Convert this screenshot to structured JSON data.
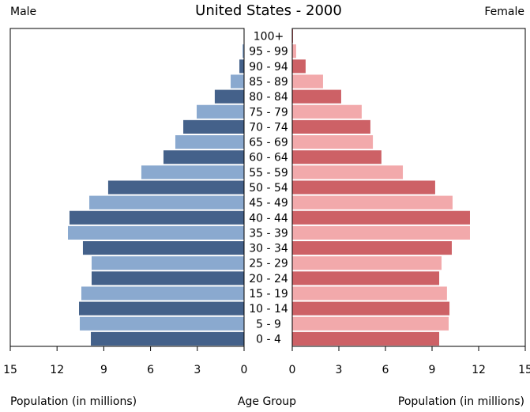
{
  "chart_data": {
    "type": "population-pyramid",
    "title": "United States - 2000",
    "y_label": "Age Group",
    "categories": [
      "100+",
      "95 - 99",
      "90 - 94",
      "85 - 89",
      "80 - 84",
      "75 - 79",
      "70 - 74",
      "65 - 69",
      "60 - 64",
      "55 - 59",
      "50 - 54",
      "45 - 49",
      "40 - 44",
      "35 - 39",
      "30 - 34",
      "25 - 29",
      "20 - 24",
      "15 - 19",
      "10 - 14",
      "5 - 9",
      "0 - 4"
    ],
    "xlim": [
      0,
      15
    ],
    "xticks": [
      0,
      3,
      6,
      9,
      12,
      15
    ],
    "series": [
      {
        "name": "Male",
        "x_label": "Population (in millions)",
        "colors": [
          "#44618a",
          "#8aa9cf"
        ],
        "values": [
          0.01,
          0.1,
          0.3,
          0.86,
          1.88,
          3.04,
          3.9,
          4.41,
          5.17,
          6.59,
          8.72,
          9.93,
          11.2,
          11.3,
          10.34,
          9.78,
          9.78,
          10.44,
          10.59,
          10.54,
          9.83
        ]
      },
      {
        "name": "Female",
        "x_label": "Population (in millions)",
        "colors": [
          "#cd6166",
          "#f2a9ab"
        ],
        "values": [
          0.05,
          0.25,
          0.86,
          1.98,
          3.15,
          4.47,
          5.03,
          5.19,
          5.74,
          7.12,
          9.2,
          10.32,
          11.44,
          11.44,
          10.27,
          9.61,
          9.46,
          9.96,
          10.12,
          10.07,
          9.46
        ]
      }
    ]
  }
}
